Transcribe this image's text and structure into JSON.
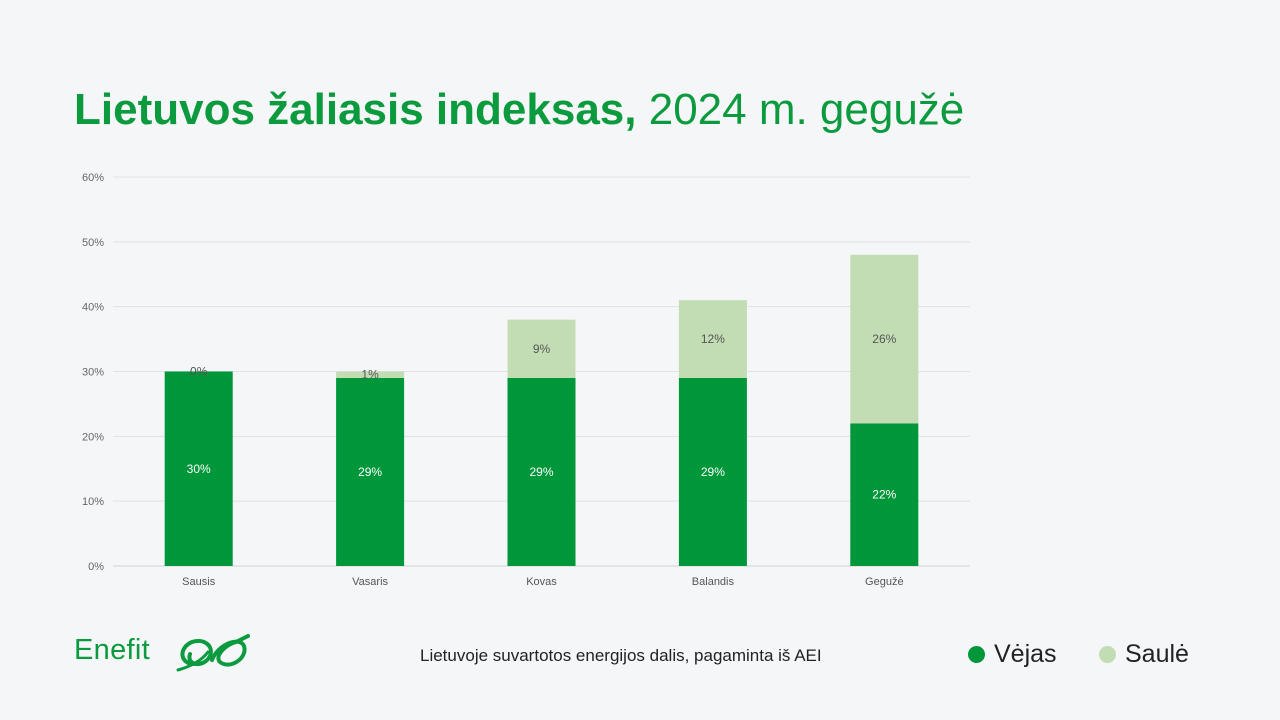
{
  "title": {
    "bold": "Lietuvos žaliasis indeksas,",
    "regular": "2024 m. gegužė"
  },
  "chart_data": {
    "type": "bar",
    "stacked": true,
    "categories": [
      "Sausis",
      "Vasaris",
      "Kovas",
      "Balandis",
      "Gegužė"
    ],
    "series": [
      {
        "name": "Vėjas",
        "color": "#00963a",
        "values": [
          30,
          29,
          29,
          29,
          22
        ],
        "labels": [
          "30%",
          "29%",
          "29%",
          "29%",
          "22%"
        ],
        "label_color": "#ffffff"
      },
      {
        "name": "Saulė",
        "color": "#c2ddb3",
        "values": [
          0,
          1,
          9,
          12,
          26
        ],
        "labels": [
          "0%",
          "1%",
          "9%",
          "12%",
          "26%"
        ],
        "label_color": "#555555"
      }
    ],
    "ylim": [
      0,
      60
    ],
    "yticks": [
      "0%",
      "10%",
      "20%",
      "30%",
      "40%",
      "50%",
      "60%"
    ],
    "grid": true,
    "legend": "bottom-right"
  },
  "caption": "Lietuvoje suvartotos energijos dalis, pagaminta iš AEI",
  "logo": {
    "text": "Enefit",
    "icon": "enefit-logo-mark"
  }
}
